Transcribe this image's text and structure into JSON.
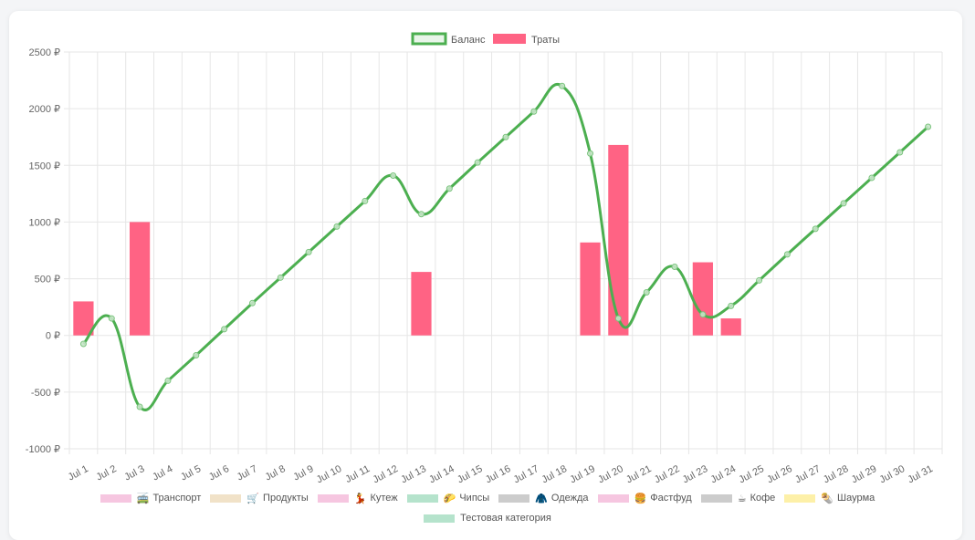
{
  "chart_data": {
    "type": "bar",
    "currency": "₽",
    "categories": [
      "Jul 1",
      "Jul 2",
      "Jul 3",
      "Jul 4",
      "Jul 5",
      "Jul 6",
      "Jul 7",
      "Jul 8",
      "Jul 9",
      "Jul 10",
      "Jul 11",
      "Jul 12",
      "Jul 13",
      "Jul 14",
      "Jul 15",
      "Jul 16",
      "Jul 17",
      "Jul 18",
      "Jul 19",
      "Jul 20",
      "Jul 21",
      "Jul 22",
      "Jul 23",
      "Jul 24",
      "Jul 25",
      "Jul 26",
      "Jul 27",
      "Jul 28",
      "Jul 29",
      "Jul 30",
      "Jul 31"
    ],
    "ylim": [
      -1000,
      2500
    ],
    "yticks": [
      "2500 ₽",
      "2000 ₽",
      "1500 ₽",
      "1000 ₽",
      "500 ₽",
      "0 ₽",
      "-500 ₽",
      "-1000 ₽"
    ],
    "grid": true,
    "legend_position": "top",
    "series": [
      {
        "name": "Баланс",
        "type": "line",
        "color": "#4caf50",
        "values": [
          -75,
          150,
          -630,
          -400,
          -175,
          55,
          285,
          510,
          735,
          960,
          1185,
          1410,
          1070,
          1295,
          1525,
          1750,
          1975,
          2200,
          1605,
          150,
          380,
          605,
          185,
          260,
          485,
          715,
          940,
          1165,
          1390,
          1615,
          1840
        ]
      },
      {
        "name": "Траты",
        "type": "bar",
        "color": "#ff6384",
        "values": [
          300,
          0,
          1000,
          0,
          0,
          0,
          0,
          0,
          0,
          0,
          0,
          0,
          560,
          0,
          0,
          0,
          0,
          0,
          820,
          1680,
          0,
          0,
          645,
          150,
          0,
          0,
          0,
          0,
          0,
          0,
          0
        ]
      }
    ]
  },
  "category_legend": [
    {
      "emoji": "🚎",
      "label": "Транспорт",
      "color": "#f6c6e0"
    },
    {
      "emoji": "🛒",
      "label": "Продукты",
      "color": "#f1e2c8"
    },
    {
      "emoji": "💃",
      "label": "Кутеж",
      "color": "#f6c6e0"
    },
    {
      "emoji": "🌮",
      "label": "Чипсы",
      "color": "#b5e3cc"
    },
    {
      "emoji": "🧥",
      "label": "Одежда",
      "color": "#cccccc"
    },
    {
      "emoji": "🍔",
      "label": "Фастфуд",
      "color": "#f6c6e0"
    },
    {
      "emoji": "☕",
      "label": "Кофе",
      "color": "#cccccc"
    },
    {
      "emoji": "🌯",
      "label": "Шаурма",
      "color": "#fdf0a8"
    },
    {
      "emoji": "",
      "label": "Тестовая категория",
      "color": "#b5e3cc"
    }
  ]
}
